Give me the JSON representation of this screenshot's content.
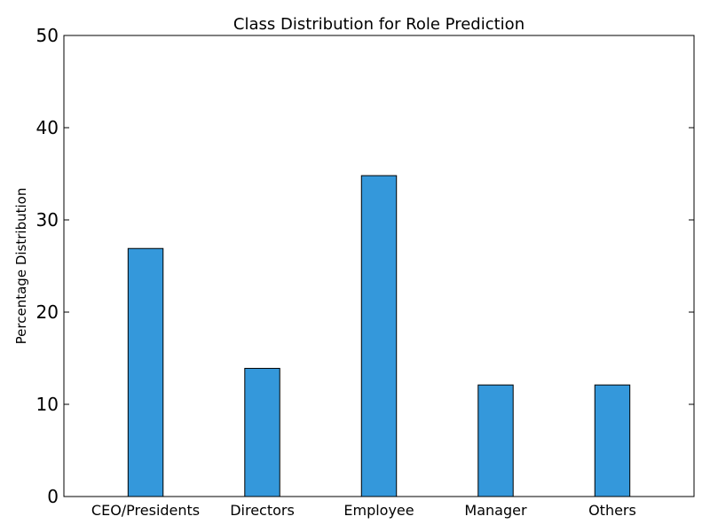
{
  "chart_data": {
    "type": "bar",
    "title": "Class Distribution for Role Prediction",
    "xlabel": "",
    "ylabel": "Percentage Distribution",
    "categories": [
      "CEO/Presidents",
      "Directors",
      "Employee",
      "Manager",
      "Others"
    ],
    "values": [
      26.9,
      13.9,
      34.8,
      12.1,
      12.1
    ],
    "ylim": [
      0,
      50
    ],
    "yticks": [
      0,
      10,
      20,
      30,
      40,
      50
    ],
    "grid": false,
    "bar_color": "#3498db",
    "edge_color": "#000000"
  }
}
